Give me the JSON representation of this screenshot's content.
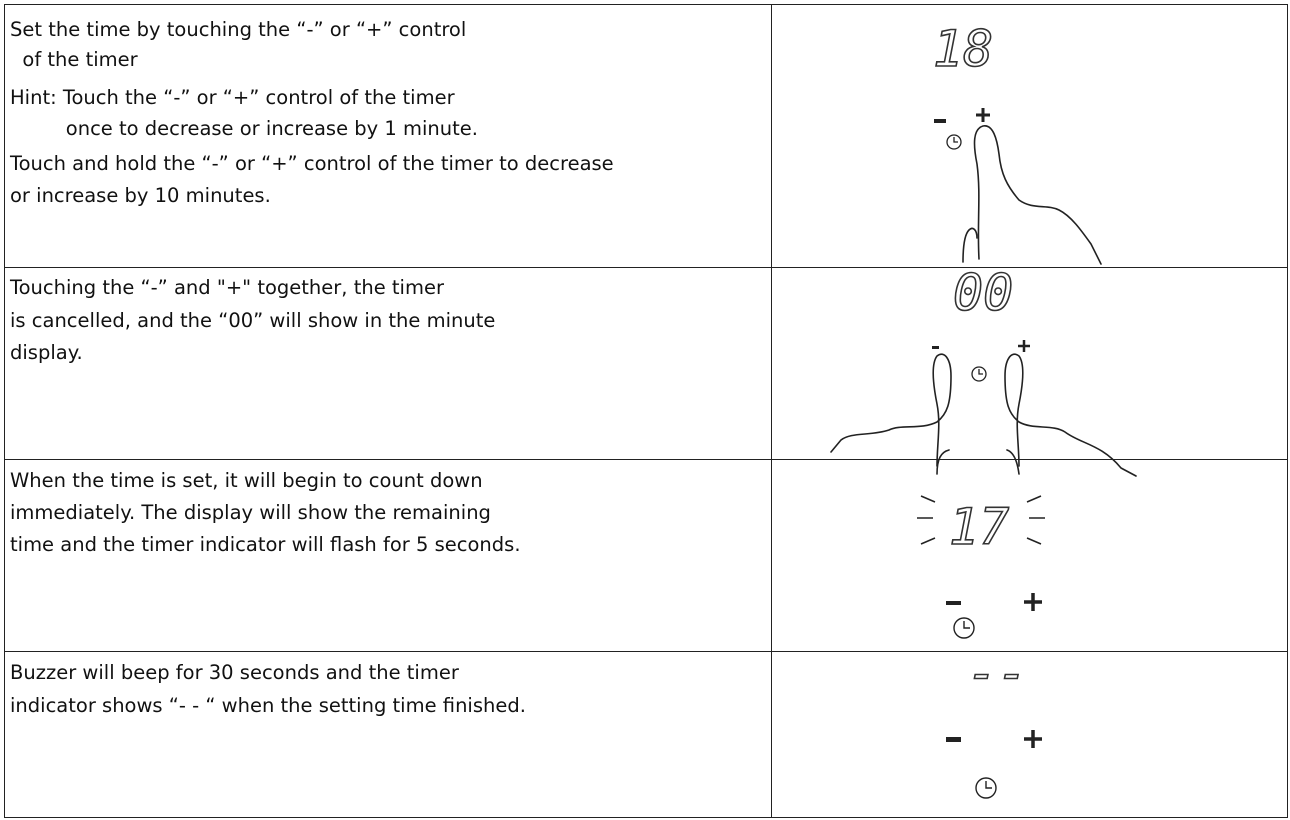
{
  "table": {
    "rows": [
      {
        "lines": [
          "Set the time by touching the “-” or “+” control",
          "  of the timer",
          "Hint: Touch the “-” or “+” control of the timer",
          "         once to decrease or increase by 1 minute.",
          "Touch and hold the “-” or “+” control of the timer to decrease",
          "or increase by 10 minutes."
        ],
        "display": "18"
      },
      {
        "lines": [
          "Touching the “-” and \"+\" together, the timer",
          "is cancelled, and the “00” will show in the minute",
          "display."
        ],
        "display": "00"
      },
      {
        "lines": [
          "When the time is set, it will begin to count down",
          "immediately. The display will show the remaining",
          "time and the timer indicator will flash for 5 seconds."
        ],
        "display": "17"
      },
      {
        "lines": [
          "Buzzer will beep for 30 seconds and the timer",
          "indicator shows “- - “ when the setting time finished."
        ],
        "display": "--"
      }
    ]
  }
}
